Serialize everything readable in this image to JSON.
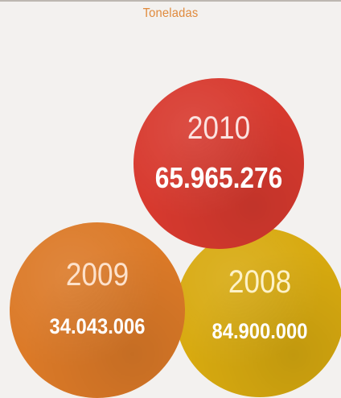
{
  "unit_label": "Toneladas",
  "colors": {
    "2010": "#d83a2f",
    "2009": "#dc7a28",
    "2008": "#d8aa10",
    "unit_label": "#e08a3c",
    "background": "#f3f1ef"
  },
  "chart_data": {
    "type": "bubble",
    "title": "",
    "unit": "Toneladas",
    "categories": [
      "2010",
      "2009",
      "2008"
    ],
    "values": [
      65965276,
      34043006,
      84900000
    ],
    "data_labels": [
      "65.965.276",
      "34.043.006",
      "84.900.000"
    ]
  }
}
